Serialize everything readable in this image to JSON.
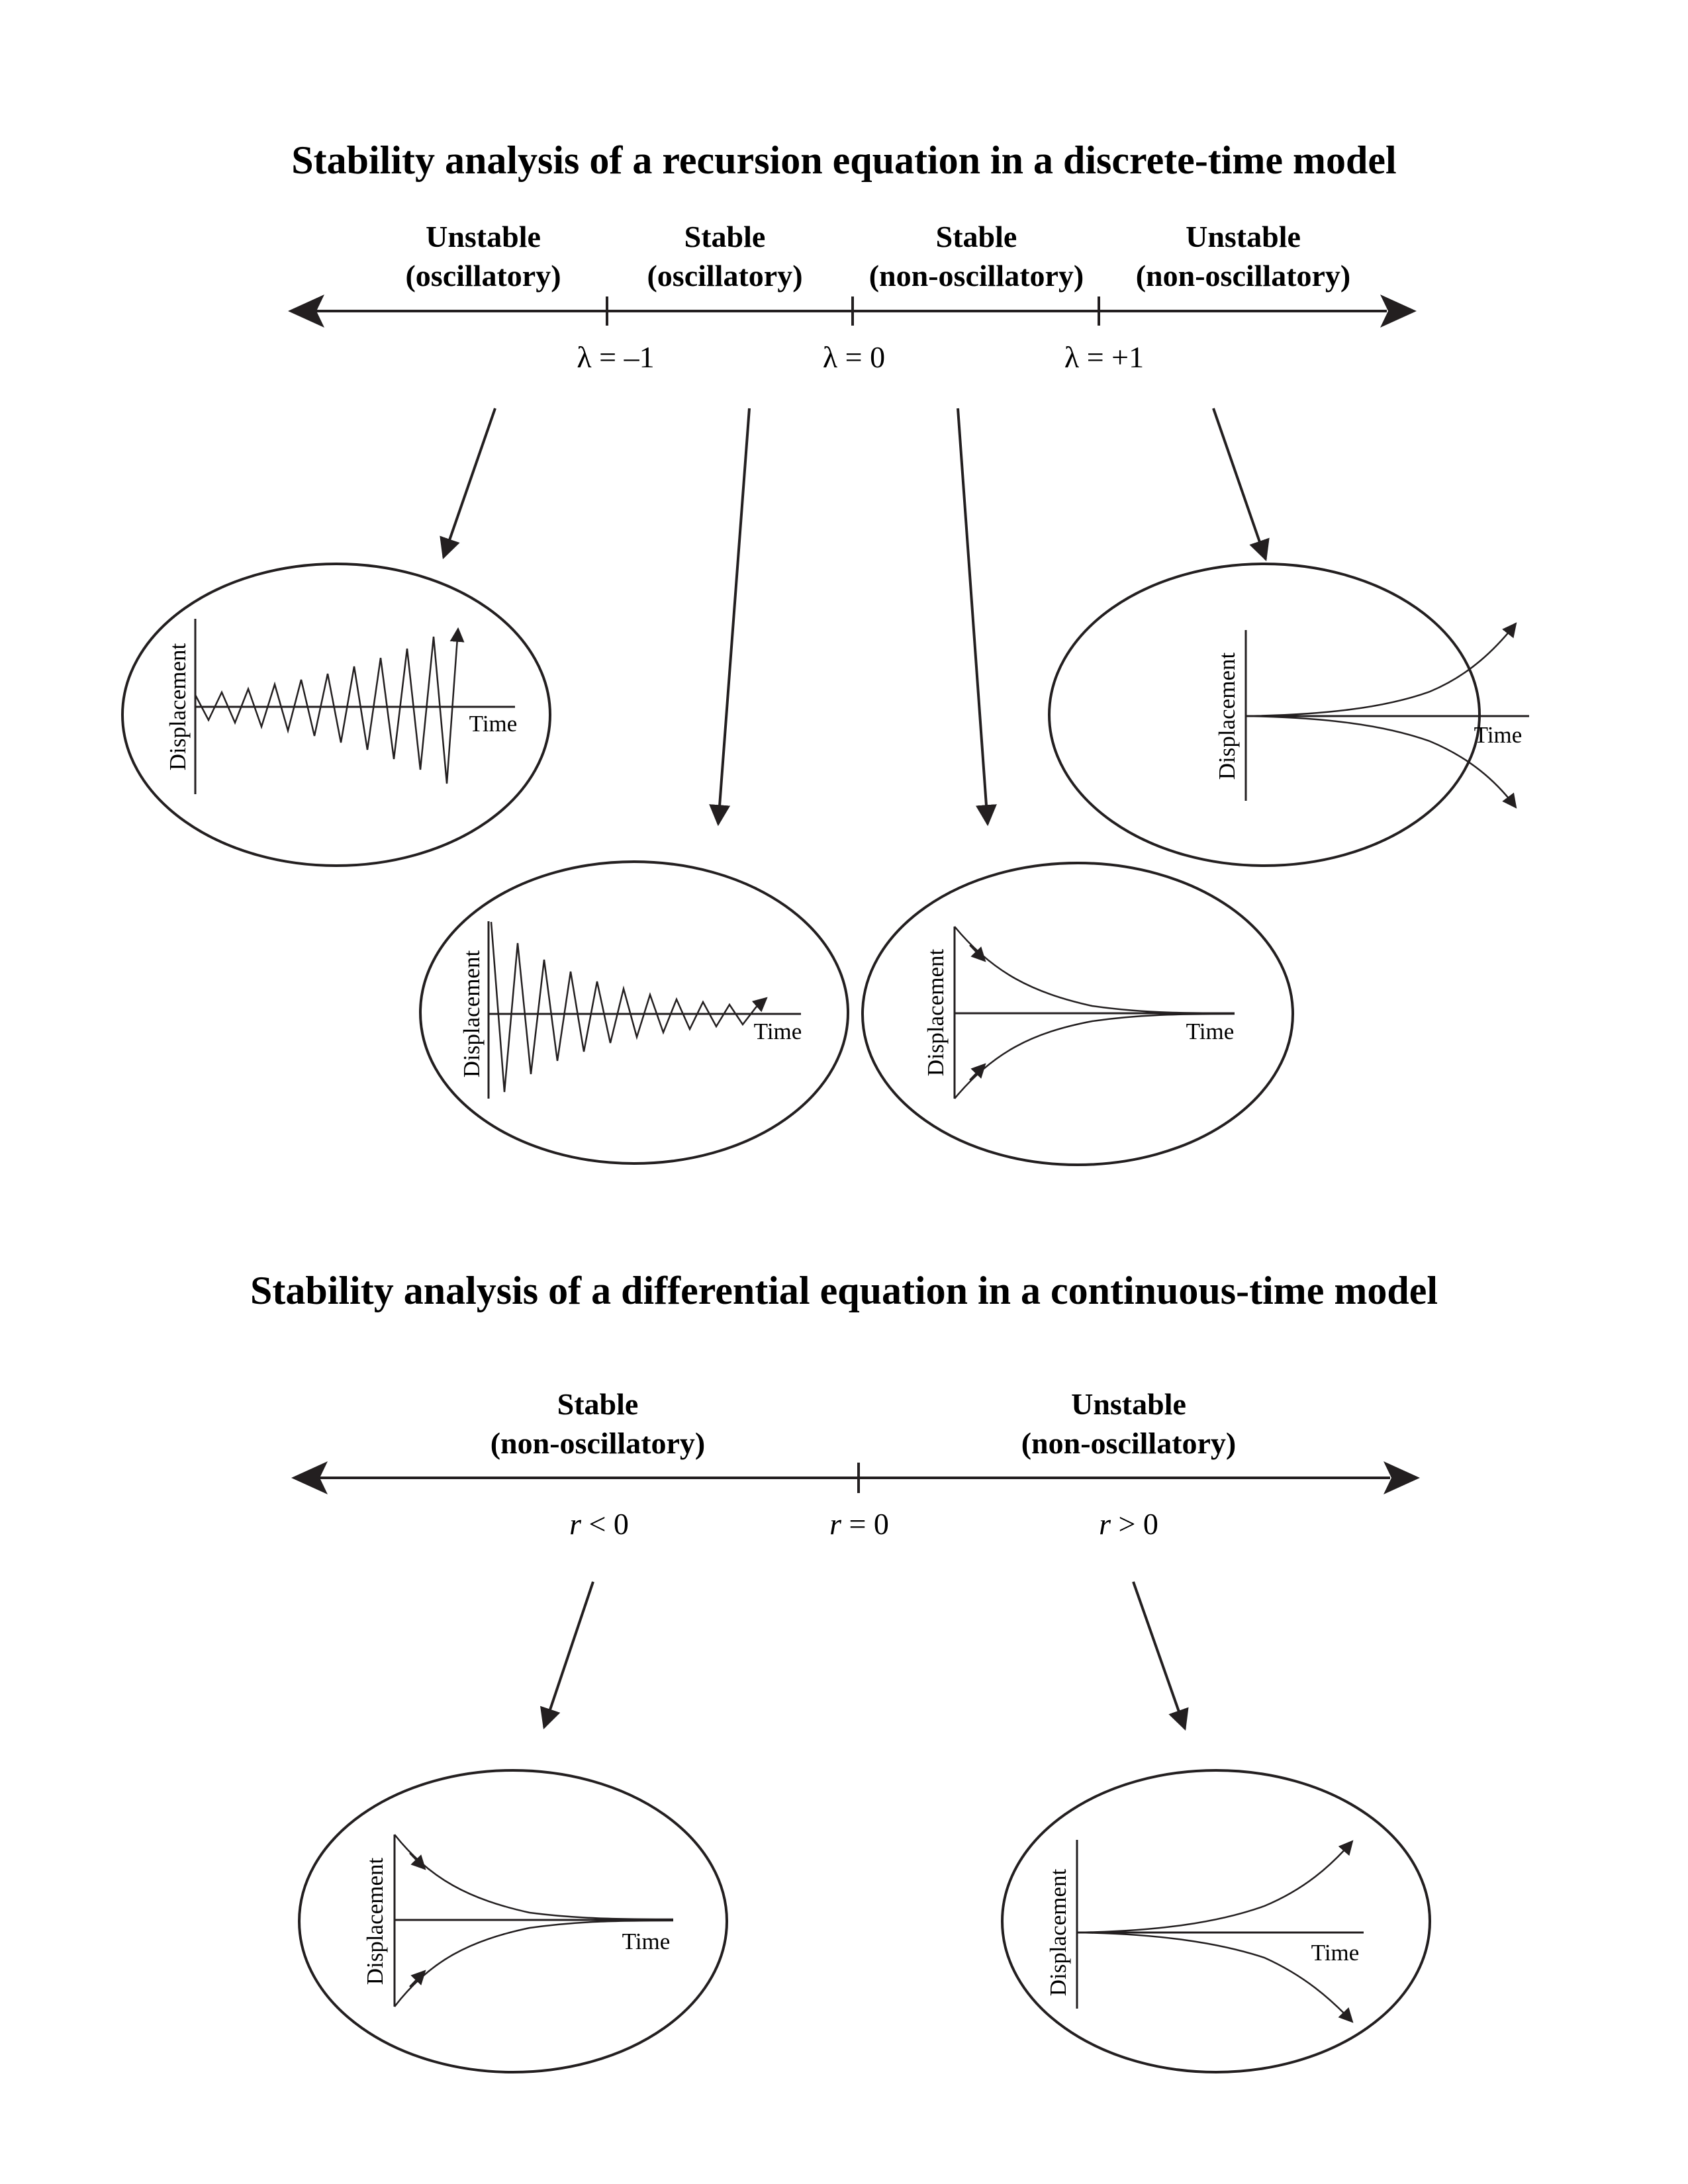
{
  "discrete": {
    "title": "Stability analysis of a recursion equation in a discrete-time model",
    "regions": [
      {
        "line1": "Unstable",
        "line2": "(oscillatory)"
      },
      {
        "line1": "Stable",
        "line2": "(oscillatory)"
      },
      {
        "line1": "Stable",
        "line2": "(non-oscillatory)"
      },
      {
        "line1": "Unstable",
        "line2": "(non-oscillatory)"
      }
    ],
    "ticks": [
      "λ = –1",
      "λ = 0",
      "λ = +1"
    ]
  },
  "continuous": {
    "title": "Stability analysis of a differential equation in a continuous-time model",
    "regions": [
      {
        "line1": "Stable",
        "line2": "(non-oscillatory)"
      },
      {
        "line1": "Unstable",
        "line2": "(non-oscillatory)"
      }
    ],
    "ticks": [
      {
        "var": "r",
        "rel": " < 0"
      },
      {
        "var": "r",
        "rel": " = 0"
      },
      {
        "var": "r",
        "rel": " > 0"
      }
    ]
  },
  "plot_labels": {
    "y": "Displacement",
    "x": "Time"
  }
}
